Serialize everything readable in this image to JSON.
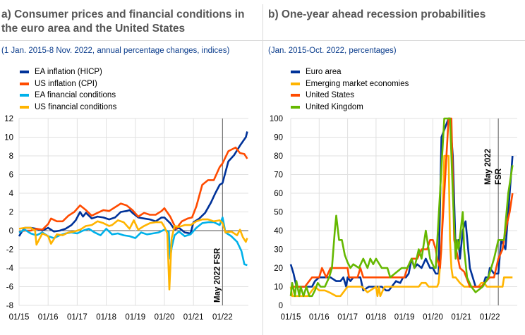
{
  "panel_a": {
    "title_line1": "a) Consumer prices and financial conditions in",
    "title_line2": "the euro area and the United States",
    "subtitle": "(1 Jan. 2015-8 Nov. 2022, annual percentage changes, indices)"
  },
  "panel_b": {
    "title_line1": "b) One-year ahead recession probabilities",
    "subtitle": "(Jan. 2015-Oct. 2022, percentages)"
  },
  "chart_data": [
    {
      "type": "line",
      "title": "a) Consumer prices and financial conditions in the euro area and the United States",
      "subtitle": "(1 Jan. 2015-8 Nov. 2022, annual percentage changes, indices)",
      "xlabel": "",
      "ylabel": "",
      "ylim": [
        -8,
        12
      ],
      "yticks": [
        -8,
        -6,
        -4,
        -2,
        0,
        2,
        4,
        6,
        8,
        10,
        12
      ],
      "xlim": [
        2015.0,
        2022.85
      ],
      "xticks": [
        2015,
        2016,
        2017,
        2018,
        2019,
        2020,
        2021,
        2022
      ],
      "xtick_labels": [
        "01/15",
        "01/16",
        "01/17",
        "01/18",
        "01/19",
        "01/20",
        "01/21",
        "01/22"
      ],
      "grid": true,
      "legend": "top-left",
      "annotation": {
        "text": "May 2022  FSR",
        "x": 2022.0
      },
      "series": [
        {
          "name": "EA inflation (HICP)",
          "color": "#003299",
          "x": [
            2015.0,
            2015.1,
            2015.2,
            2015.4,
            2015.6,
            2015.8,
            2016.0,
            2016.2,
            2016.4,
            2016.6,
            2016.8,
            2016.95,
            2017.1,
            2017.2,
            2017.3,
            2017.5,
            2017.7,
            2017.9,
            2018.1,
            2018.3,
            2018.5,
            2018.7,
            2018.8,
            2018.9,
            2019.1,
            2019.3,
            2019.5,
            2019.7,
            2019.9,
            2020.0,
            2020.2,
            2020.35,
            2020.5,
            2020.7,
            2020.9,
            2021.0,
            2021.2,
            2021.4,
            2021.6,
            2021.75,
            2021.9,
            2022.0,
            2022.2,
            2022.4,
            2022.6,
            2022.8,
            2022.85
          ],
          "y": [
            -0.6,
            -0.1,
            0.3,
            0.3,
            0.2,
            0.0,
            0.3,
            -0.1,
            0.0,
            0.2,
            0.6,
            1.1,
            2.0,
            1.5,
            1.9,
            1.3,
            1.5,
            1.4,
            1.2,
            1.4,
            2.0,
            2.1,
            2.2,
            1.9,
            1.4,
            1.3,
            1.2,
            1.0,
            1.4,
            1.4,
            0.8,
            0.1,
            0.3,
            -0.2,
            -0.3,
            0.9,
            1.3,
            1.9,
            3.0,
            4.0,
            4.9,
            5.1,
            7.4,
            8.1,
            9.1,
            10.0,
            10.6
          ]
        },
        {
          "name": "US inflation (CPI)",
          "color": "#ff4b00",
          "x": [
            2015.0,
            2015.2,
            2015.4,
            2015.6,
            2015.8,
            2016.0,
            2016.1,
            2016.3,
            2016.5,
            2016.7,
            2016.9,
            2017.1,
            2017.3,
            2017.5,
            2017.7,
            2017.9,
            2018.1,
            2018.3,
            2018.5,
            2018.7,
            2018.9,
            2019.1,
            2019.3,
            2019.5,
            2019.7,
            2019.9,
            2020.0,
            2020.2,
            2020.4,
            2020.6,
            2020.8,
            2020.95,
            2021.1,
            2021.3,
            2021.5,
            2021.7,
            2021.9,
            2022.0,
            2022.2,
            2022.45,
            2022.6,
            2022.75,
            2022.85
          ],
          "y": [
            -0.1,
            0.0,
            0.0,
            0.2,
            0.1,
            0.7,
            1.3,
            1.0,
            1.0,
            1.6,
            2.0,
            2.7,
            2.2,
            1.6,
            1.9,
            2.2,
            2.1,
            2.5,
            2.9,
            2.7,
            2.2,
            1.5,
            1.9,
            1.7,
            1.7,
            2.1,
            2.4,
            1.5,
            0.2,
            1.0,
            1.3,
            1.4,
            2.6,
            4.9,
            5.4,
            5.4,
            6.8,
            7.2,
            8.5,
            8.9,
            8.3,
            8.2,
            7.7
          ]
        },
        {
          "name": "EA financial conditions",
          "color": "#00b1ea",
          "x": [
            2015.0,
            2015.2,
            2015.4,
            2015.6,
            2015.8,
            2016.0,
            2016.2,
            2016.4,
            2016.6,
            2016.8,
            2017.0,
            2017.2,
            2017.4,
            2017.6,
            2017.8,
            2018.0,
            2018.2,
            2018.4,
            2018.6,
            2018.8,
            2019.0,
            2019.2,
            2019.4,
            2019.6,
            2019.8,
            2020.0,
            2020.15,
            2020.2,
            2020.25,
            2020.35,
            2020.5,
            2020.7,
            2020.9,
            2021.1,
            2021.3,
            2021.5,
            2021.7,
            2021.9,
            2022.0,
            2022.1,
            2022.3,
            2022.5,
            2022.65,
            2022.75,
            2022.85
          ],
          "y": [
            -0.2,
            0.1,
            -0.3,
            -0.5,
            -0.2,
            -0.6,
            -0.8,
            -0.5,
            -0.3,
            -0.2,
            -0.3,
            0.0,
            0.2,
            -0.2,
            -0.5,
            0.2,
            -0.4,
            -0.3,
            -0.5,
            -0.6,
            -0.8,
            -0.2,
            -0.4,
            -0.3,
            -0.2,
            0.1,
            -0.1,
            -3.0,
            -1.8,
            -0.5,
            -0.1,
            -0.6,
            -0.4,
            0.3,
            0.8,
            0.9,
            0.9,
            0.6,
            1.4,
            -0.2,
            -0.6,
            -1.2,
            -2.2,
            -3.6,
            -3.7
          ]
        },
        {
          "name": "US financial conditions",
          "color": "#ffb400",
          "x": [
            2015.0,
            2015.2,
            2015.4,
            2015.55,
            2015.6,
            2015.8,
            2016.0,
            2016.1,
            2016.3,
            2016.5,
            2016.7,
            2016.9,
            2017.1,
            2017.3,
            2017.5,
            2017.7,
            2017.9,
            2018.1,
            2018.2,
            2018.4,
            2018.6,
            2018.8,
            2018.95,
            2019.1,
            2019.3,
            2019.5,
            2019.7,
            2019.9,
            2020.0,
            2020.1,
            2020.17,
            2020.25,
            2020.35,
            2020.5,
            2020.7,
            2020.9,
            2021.1,
            2021.3,
            2021.5,
            2021.7,
            2021.9,
            2022.0,
            2022.1,
            2022.3,
            2022.5,
            2022.6,
            2022.7,
            2022.8,
            2022.85
          ],
          "y": [
            0.2,
            0.3,
            0.3,
            0.0,
            -1.5,
            -0.3,
            -0.6,
            -1.4,
            -0.4,
            -0.5,
            -0.2,
            -0.1,
            0.1,
            0.5,
            0.6,
            1.0,
            0.8,
            0.5,
            0.6,
            1.1,
            0.9,
            0.2,
            1.1,
            0.1,
            0.5,
            0.8,
            0.9,
            0.9,
            0.4,
            -0.3,
            -6.3,
            -0.8,
            0.5,
            0.4,
            0.6,
            0.6,
            1.0,
            1.2,
            1.2,
            1.0,
            1.1,
            0.8,
            -0.2,
            -0.1,
            -0.5,
            0.1,
            -0.7,
            -1.2,
            -0.8
          ]
        }
      ]
    },
    {
      "type": "line",
      "title": "b) One-year ahead recession probabilities",
      "subtitle": "(Jan. 2015-Oct. 2022, percentages)",
      "xlabel": "",
      "ylabel": "",
      "ylim": [
        0,
        100
      ],
      "yticks": [
        0,
        10,
        20,
        30,
        40,
        50,
        60,
        70,
        80,
        90,
        100
      ],
      "xlim": [
        2015.0,
        2022.85
      ],
      "xticks": [
        2015,
        2016,
        2017,
        2018,
        2019,
        2020,
        2021,
        2022
      ],
      "xtick_labels": [
        "01/15",
        "01/16",
        "01/17",
        "01/18",
        "01/19",
        "01/20",
        "01/21",
        "01/22"
      ],
      "grid": true,
      "legend": "top-left",
      "annotation": {
        "text_line1": "May 2022",
        "text_line2": "FSR",
        "x": 2022.3
      },
      "series": [
        {
          "name": "Euro area",
          "color": "#003299",
          "x": [
            2015.0,
            2015.1,
            2015.2,
            2015.3,
            2015.5,
            2015.75,
            2015.85,
            2016.0,
            2016.2,
            2016.4,
            2016.6,
            2016.75,
            2016.85,
            2016.95,
            2017.0,
            2017.1,
            2017.2,
            2017.3,
            2017.45,
            2017.55,
            2017.75,
            2017.95,
            2018.1,
            2018.2,
            2018.35,
            2018.45,
            2018.55,
            2018.7,
            2018.85,
            2018.95,
            2019.05,
            2019.15,
            2019.25,
            2019.35,
            2019.45,
            2019.6,
            2019.75,
            2019.9,
            2020.0,
            2020.1,
            2020.2,
            2020.3,
            2020.55,
            2020.6,
            2020.7,
            2020.8,
            2020.9,
            2020.95,
            2021.05,
            2021.15,
            2021.3,
            2021.5,
            2021.6,
            2021.75,
            2021.85,
            2021.95,
            2022.0,
            2022.15,
            2022.3,
            2022.4,
            2022.55,
            2022.7,
            2022.8
          ],
          "y": [
            22,
            17,
            10,
            10,
            10,
            10,
            13,
            15,
            15,
            15,
            13,
            13,
            15,
            10,
            15,
            13,
            15,
            15,
            15,
            8,
            10,
            10,
            10,
            10,
            8,
            8,
            10,
            13,
            12,
            15,
            15,
            17,
            25,
            20,
            22,
            20,
            25,
            20,
            20,
            17,
            17,
            90,
            100,
            100,
            80,
            30,
            35,
            25,
            40,
            45,
            20,
            10,
            10,
            10,
            15,
            15,
            20,
            17,
            17,
            35,
            30,
            60,
            80
          ]
        },
        {
          "name": "Emerging market economies",
          "color": "#ffb400",
          "x": [
            2015.0,
            2015.05,
            2015.6,
            2015.75,
            2015.85,
            2016.0,
            2016.2,
            2016.35,
            2016.6,
            2016.75,
            2017.0,
            2017.5,
            2017.7,
            2017.8,
            2018.0,
            2018.05,
            2018.1,
            2018.15,
            2018.3,
            2018.6,
            2019.0,
            2019.5,
            2019.6,
            2019.75,
            2019.85,
            2020.0,
            2020.15,
            2020.2,
            2020.3,
            2020.4,
            2020.55,
            2020.6,
            2020.65,
            2020.7,
            2020.8,
            2020.95,
            2021.1,
            2021.4,
            2021.6,
            2021.7,
            2021.8,
            2021.9,
            2022.2,
            2022.45,
            2022.5,
            2022.8
          ],
          "y": [
            10,
            5,
            5,
            8,
            10,
            8,
            8,
            7,
            5,
            5,
            10,
            10,
            7,
            8,
            10,
            5,
            10,
            5,
            10,
            10,
            10,
            10,
            12,
            12,
            10,
            10,
            10,
            12,
            30,
            80,
            80,
            35,
            20,
            15,
            15,
            12,
            10,
            10,
            10,
            12,
            12,
            10,
            10,
            10,
            15,
            15
          ]
        },
        {
          "name": "United States",
          "color": "#ff4b00",
          "x": [
            2015.0,
            2015.5,
            2015.75,
            2015.85,
            2016.0,
            2016.1,
            2016.25,
            2016.4,
            2016.6,
            2016.9,
            2017.0,
            2017.05,
            2017.35,
            2017.45,
            2017.55,
            2017.95,
            2018.5,
            2018.8,
            2019.0,
            2019.1,
            2019.25,
            2019.45,
            2019.6,
            2019.8,
            2019.9,
            2020.0,
            2020.1,
            2020.15,
            2020.25,
            2020.55,
            2020.65,
            2020.75,
            2020.95,
            2021.1,
            2021.3,
            2021.5,
            2021.7,
            2022.0,
            2022.15,
            2022.3,
            2022.45,
            2022.55,
            2022.7,
            2022.8
          ],
          "y": [
            10,
            10,
            15,
            15,
            15,
            20,
            15,
            20,
            20,
            20,
            20,
            15,
            15,
            20,
            15,
            15,
            15,
            15,
            15,
            20,
            25,
            25,
            30,
            30,
            35,
            35,
            30,
            25,
            20,
            100,
            100,
            35,
            20,
            18,
            10,
            10,
            10,
            15,
            15,
            25,
            30,
            40,
            50,
            60
          ]
        },
        {
          "name": "United Kingdom",
          "color": "#65b800",
          "x": [
            2015.0,
            2015.05,
            2015.15,
            2015.2,
            2015.3,
            2015.35,
            2015.45,
            2015.55,
            2015.65,
            2015.75,
            2015.85,
            2015.95,
            2016.05,
            2016.2,
            2016.35,
            2016.45,
            2016.55,
            2016.6,
            2016.7,
            2016.8,
            2016.9,
            2017.0,
            2017.1,
            2017.2,
            2017.4,
            2017.55,
            2017.7,
            2017.8,
            2017.9,
            2018.0,
            2018.2,
            2018.3,
            2018.4,
            2018.5,
            2018.9,
            2019.1,
            2019.25,
            2019.35,
            2019.5,
            2019.6,
            2019.75,
            2019.9,
            2020.05,
            2020.1,
            2020.4,
            2020.6,
            2020.7,
            2020.8,
            2020.85,
            2020.9,
            2021.05,
            2021.1,
            2021.2,
            2021.35,
            2021.5,
            2021.75,
            2021.95,
            2022.15,
            2022.3,
            2022.5,
            2022.65,
            2022.8
          ],
          "y": [
            5,
            12,
            5,
            13,
            5,
            10,
            5,
            10,
            5,
            5,
            8,
            12,
            10,
            10,
            15,
            20,
            40,
            48,
            35,
            35,
            27,
            23,
            20,
            22,
            20,
            25,
            20,
            25,
            22,
            25,
            20,
            20,
            20,
            15,
            20,
            20,
            25,
            20,
            30,
            25,
            40,
            25,
            20,
            20,
            100,
            100,
            60,
            25,
            35,
            30,
            50,
            30,
            15,
            10,
            7,
            10,
            15,
            25,
            35,
            35,
            60,
            75
          ]
        }
      ]
    }
  ]
}
